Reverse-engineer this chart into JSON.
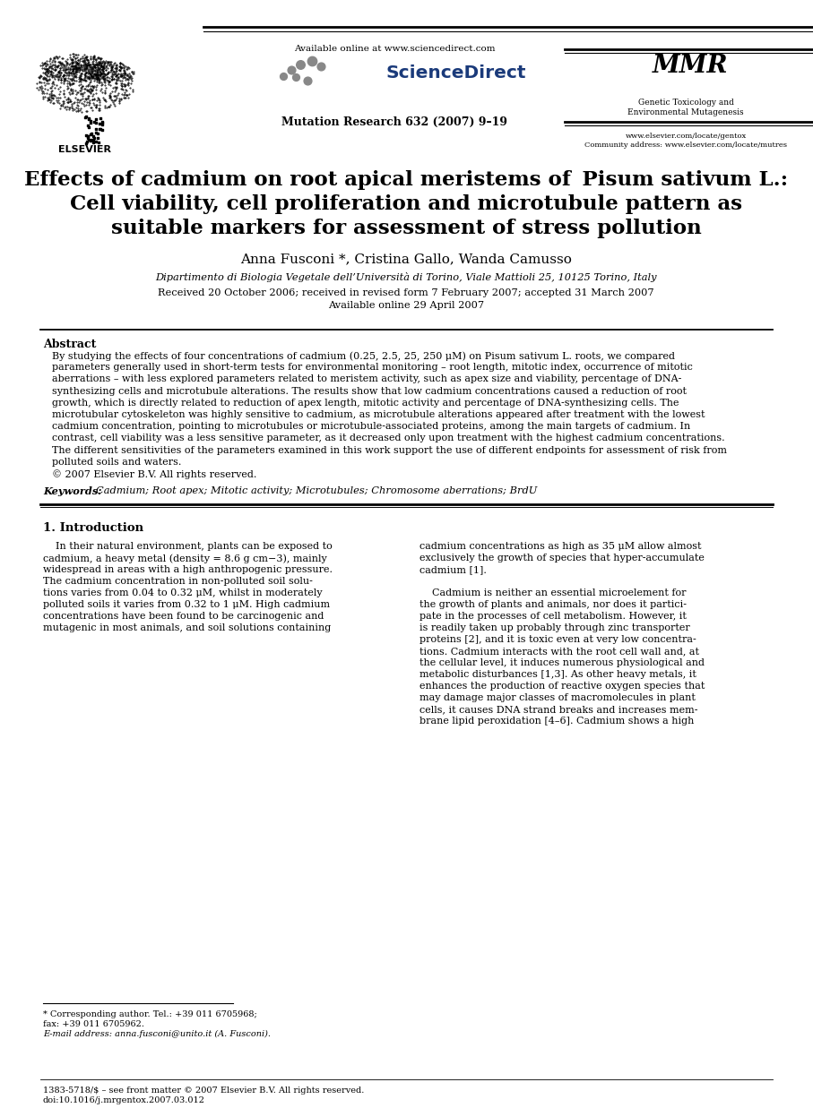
{
  "bg_color": "#ffffff",
  "header_available_online": "Available online at www.sciencedirect.com",
  "journal_name": "Mutation Research 632 (2007) 9–19",
  "journal_right_name1": "Genetic Toxicology and",
  "journal_right_name2": "Environmental Mutagenesis",
  "journal_url1": "www.elsevier.com/locate/gentox",
  "journal_url2": "Community address: www.elsevier.com/locate/mutres",
  "title_line1": "Effects of cadmium on root apical meristems of ",
  "title_italic": "Pisum sativum",
  "title_line1_end": " L.:",
  "title_line2": "Cell viability, cell proliferation and microtubule pattern as",
  "title_line3": "suitable markers for assessment of stress pollution",
  "authors": "Anna Fusconi *, Cristina Gallo, Wanda Camusso",
  "affiliation": "Dipartimento di Biologia Vegetale dell’Università di Torino, Viale Mattioli 25, 10125 Torino, Italy",
  "received": "Received 20 October 2006; received in revised form 7 February 2007; accepted 31 March 2007",
  "available_online": "Available online 29 April 2007",
  "abstract_title": "Abstract",
  "keywords_label": "Keywords:  ",
  "keywords_text": "Cadmium; Root apex; Mitotic activity; Microtubules; Chromosome aberrations; BrdU",
  "section1_title": "1. Introduction",
  "footnote_star": "* Corresponding author. Tel.: +39 011 6705968;",
  "footnote_fax": "fax: +39 011 6705962.",
  "footnote_email": "E-mail address: anna.fusconi@unito.it (A. Fusconi).",
  "footer_issn": "1383-5718/$ – see front matter © 2007 Elsevier B.V. All rights reserved.",
  "footer_doi": "doi:10.1016/j.mrgentox.2007.03.012",
  "abstract_lines": [
    "By studying the effects of four concentrations of cadmium (0.25, 2.5, 25, 250 μM) on Pisum sativum L. roots, we compared",
    "parameters generally used in short-term tests for environmental monitoring – root length, mitotic index, occurrence of mitotic",
    "aberrations – with less explored parameters related to meristem activity, such as apex size and viability, percentage of DNA-",
    "synthesizing cells and microtubule alterations. The results show that low cadmium concentrations caused a reduction of root",
    "growth, which is directly related to reduction of apex length, mitotic activity and percentage of DNA-synthesizing cells. The",
    "microtubular cytoskeleton was highly sensitive to cadmium, as microtubule alterations appeared after treatment with the lowest",
    "cadmium concentration, pointing to microtubules or microtubule-associated proteins, among the main targets of cadmium. In",
    "contrast, cell viability was a less sensitive parameter, as it decreased only upon treatment with the highest cadmium concentrations.",
    "The different sensitivities of the parameters examined in this work support the use of different endpoints for assessment of risk from",
    "polluted soils and waters.",
    "© 2007 Elsevier B.V. All rights reserved."
  ],
  "col1_lines": [
    "    In their natural environment, plants can be exposed to",
    "cadmium, a heavy metal (density = 8.6 g cm−3), mainly",
    "widespread in areas with a high anthropogenic pressure.",
    "The cadmium concentration in non-polluted soil solu-",
    "tions varies from 0.04 to 0.32 μM, whilst in moderately",
    "polluted soils it varies from 0.32 to 1 μM. High cadmium",
    "concentrations have been found to be carcinogenic and",
    "mutagenic in most animals, and soil solutions containing"
  ],
  "col2_lines_p1": [
    "cadmium concentrations as high as 35 μM allow almost",
    "exclusively the growth of species that hyper-accumulate",
    "cadmium [1]."
  ],
  "col2_lines_p2": [
    "    Cadmium is neither an essential microelement for",
    "the growth of plants and animals, nor does it partici-",
    "pate in the processes of cell metabolism. However, it",
    "is readily taken up probably through zinc transporter",
    "proteins [2], and it is toxic even at very low concentra-",
    "tions. Cadmium interacts with the root cell wall and, at",
    "the cellular level, it induces numerous physiological and",
    "metabolic disturbances [1,3]. As other heavy metals, it",
    "enhances the production of reactive oxygen species that",
    "may damage major classes of macromolecules in plant",
    "cells, it causes DNA strand breaks and increases mem-",
    "brane lipid peroxidation [4–6]. Cadmium shows a high"
  ]
}
